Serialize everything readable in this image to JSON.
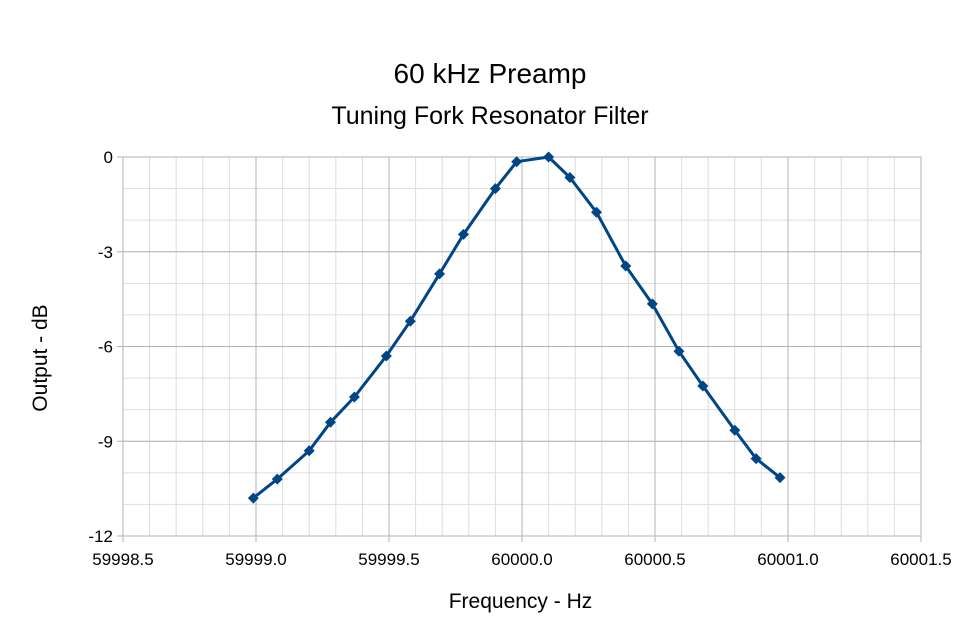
{
  "chart_data": {
    "type": "line",
    "title": "60 kHz Preamp",
    "subtitle": "Tuning Fork Resonator Filter",
    "xlabel": "Frequency - Hz",
    "ylabel": "Output - dB",
    "xlim": [
      59998.5,
      60001.5
    ],
    "ylim": [
      -12,
      0
    ],
    "x_ticks": [
      "59998.5",
      "59999.0",
      "59999.5",
      "60000.0",
      "60000.5",
      "60001.0",
      "60001.5"
    ],
    "y_ticks": [
      "0",
      "-3",
      "-6",
      "-9",
      "-12"
    ],
    "grid": true,
    "legend": "none",
    "series": [
      {
        "color": "#004586",
        "marker": "diamond",
        "points": [
          [
            59998.99,
            -10.8
          ],
          [
            59999.08,
            -10.2
          ],
          [
            59999.2,
            -9.3
          ],
          [
            59999.28,
            -8.4
          ],
          [
            59999.37,
            -7.6
          ],
          [
            59999.49,
            -6.3
          ],
          [
            59999.58,
            -5.2
          ],
          [
            59999.69,
            -3.7
          ],
          [
            59999.78,
            -2.45
          ],
          [
            59999.9,
            -1.0
          ],
          [
            59999.98,
            -0.15
          ],
          [
            60000.1,
            0.0
          ],
          [
            60000.18,
            -0.65
          ],
          [
            60000.28,
            -1.75
          ],
          [
            60000.39,
            -3.45
          ],
          [
            60000.49,
            -4.65
          ],
          [
            60000.59,
            -6.15
          ],
          [
            60000.68,
            -7.25
          ],
          [
            60000.8,
            -8.65
          ],
          [
            60000.88,
            -9.55
          ],
          [
            60000.97,
            -10.15
          ]
        ]
      }
    ]
  }
}
